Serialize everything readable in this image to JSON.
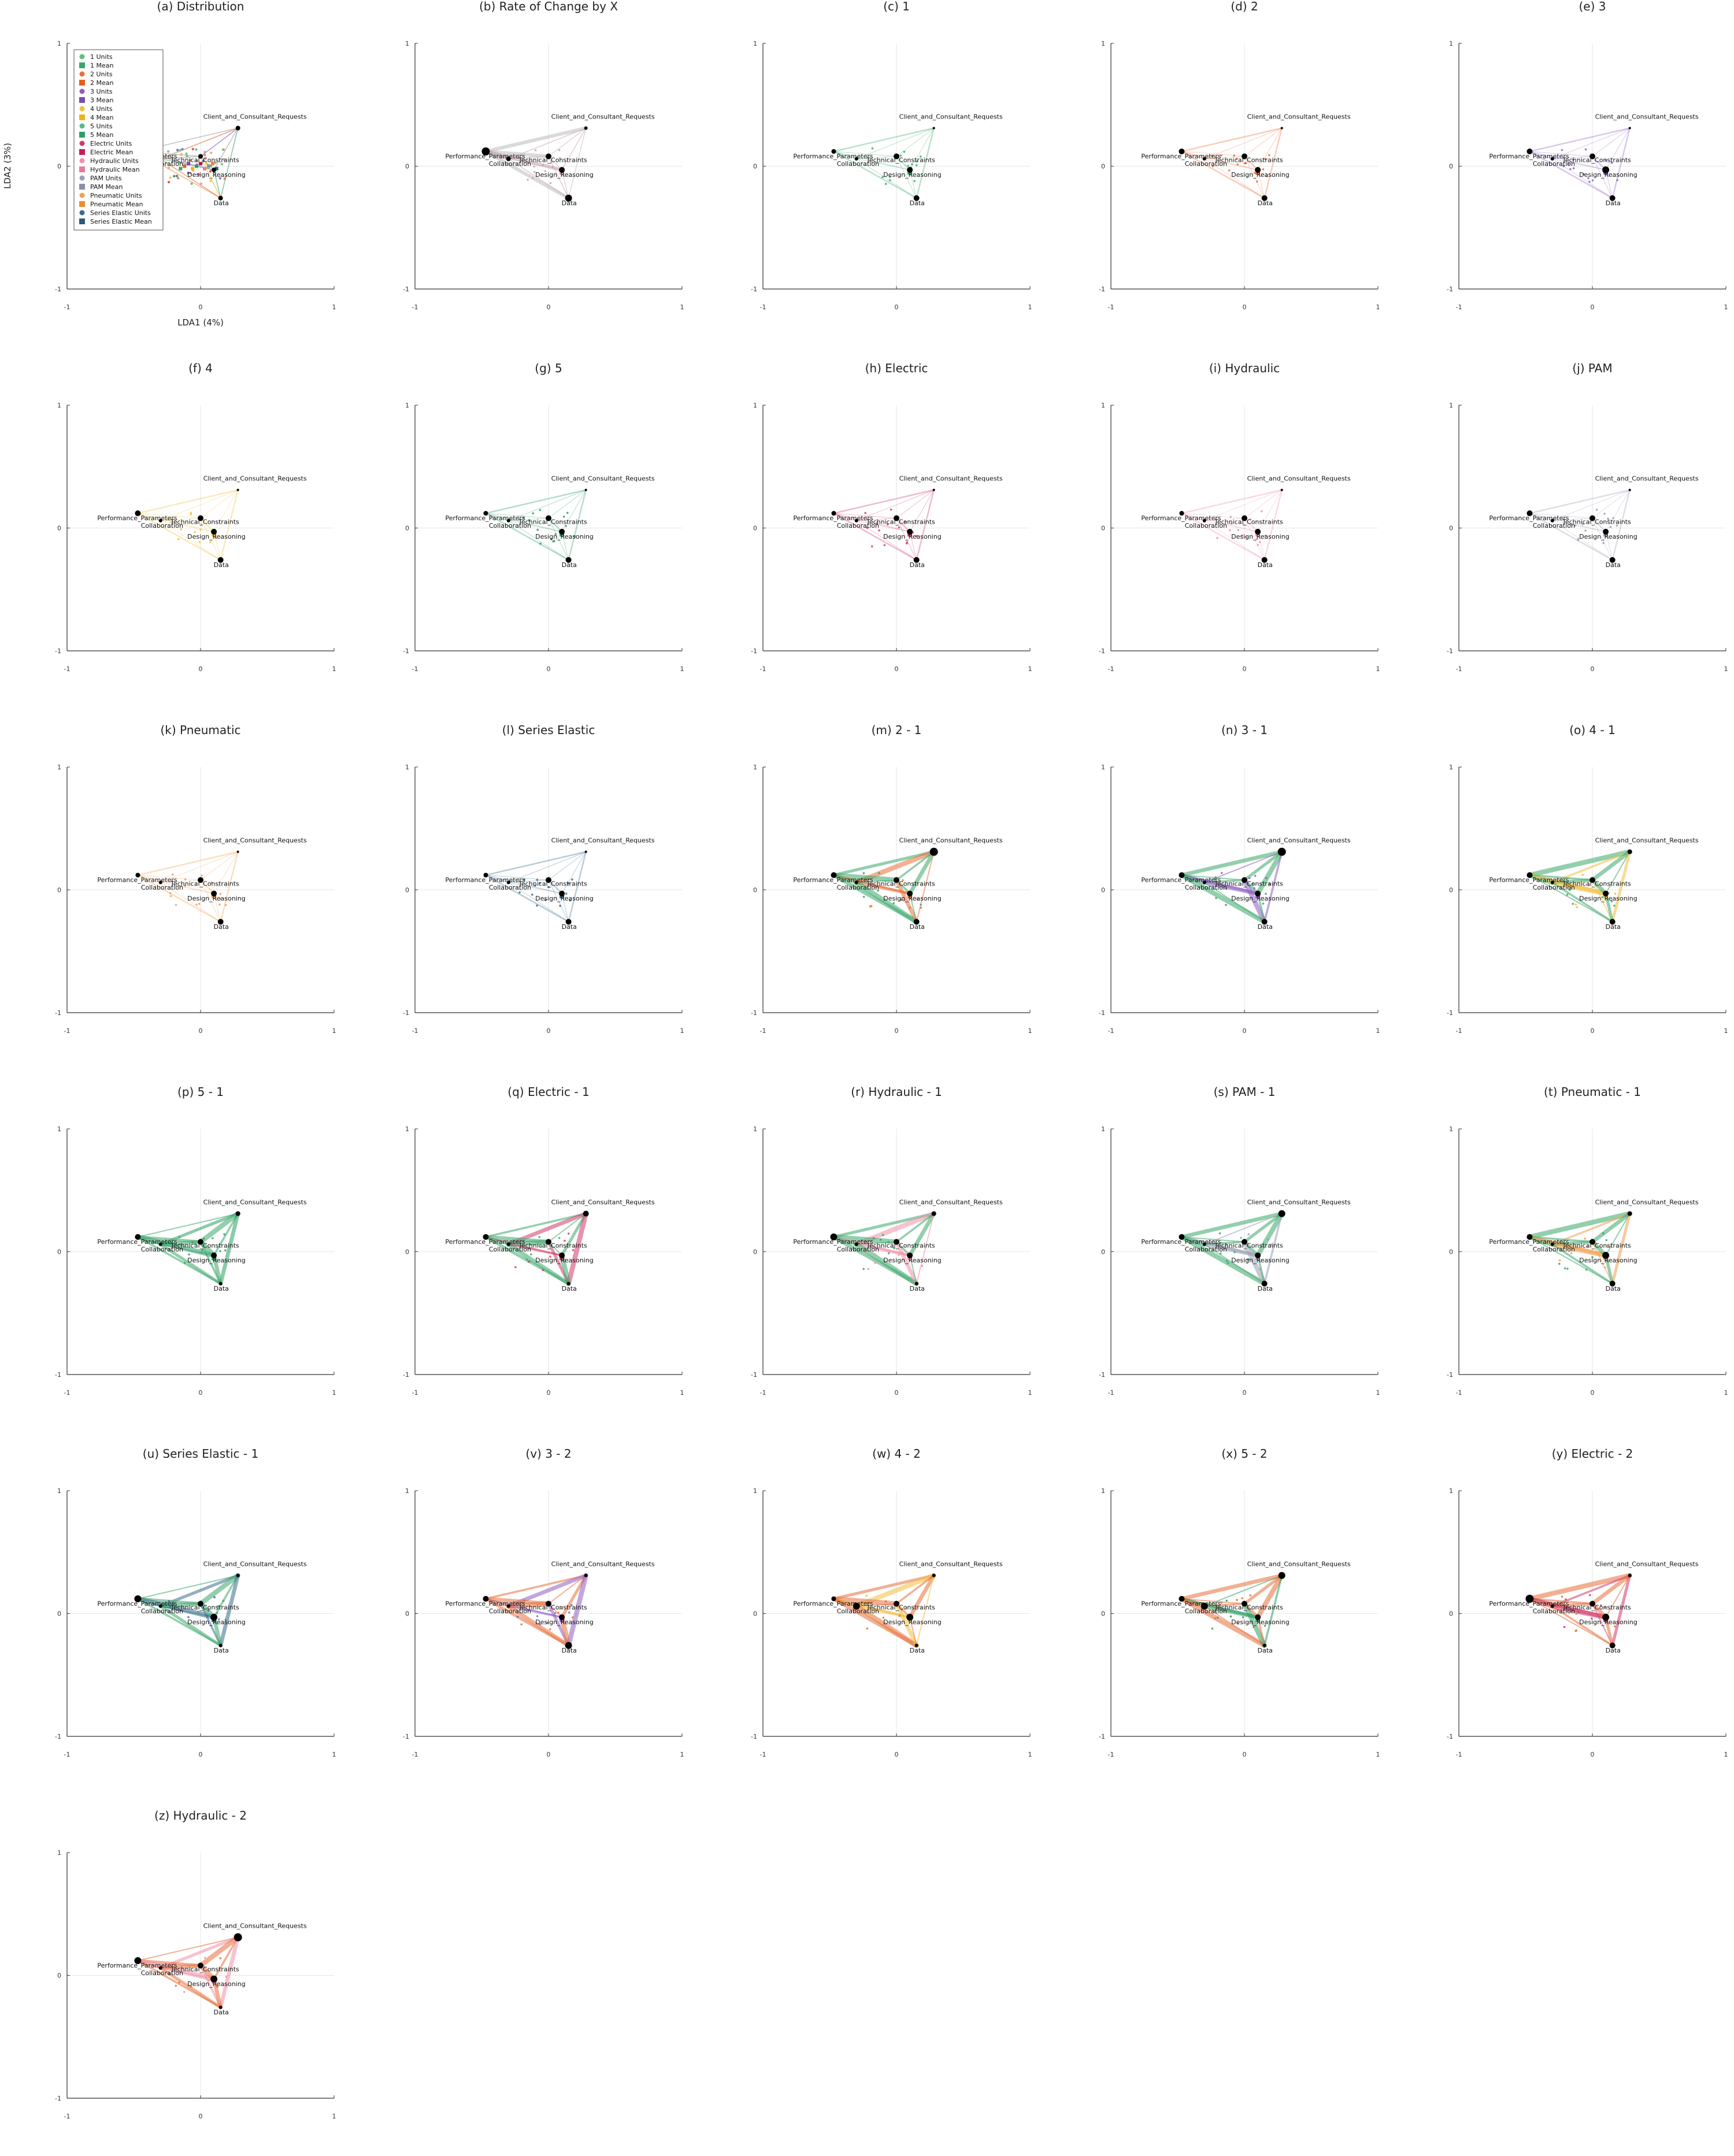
{
  "figure": {
    "xlabel": "LDA1 (4%)",
    "ylabel": "LDA2 (3%)",
    "xlim": [
      -1,
      1
    ],
    "ylim": [
      -1,
      1
    ],
    "ticks": [
      "-1",
      "0",
      "1"
    ]
  },
  "chart_data": {
    "type": "scatter",
    "xlim": [
      -1,
      1
    ],
    "ylim": [
      -1,
      1
    ],
    "grid": true,
    "legend_placement": "top-left",
    "nodes": [
      {
        "label": "Client_and_Consultant_Requests",
        "x": 0.28,
        "y": 0.31
      },
      {
        "label": "Performance_Parameters",
        "x": -0.47,
        "y": 0.12
      },
      {
        "label": "Collaboration",
        "x": -0.3,
        "y": 0.06
      },
      {
        "label": "Technical_Constraints",
        "x": 0.0,
        "y": 0.08
      },
      {
        "label": "Design_Reasoning",
        "x": 0.1,
        "y": -0.03
      },
      {
        "label": "Data",
        "x": 0.15,
        "y": -0.26
      }
    ],
    "legend": [
      {
        "name": "1 Units",
        "color": "#5fc07f",
        "marker": "circle"
      },
      {
        "name": "1 Mean",
        "color": "#3aa86a",
        "marker": "square"
      },
      {
        "name": "2 Units",
        "color": "#e8703a",
        "marker": "circle"
      },
      {
        "name": "2 Mean",
        "color": "#e06020",
        "marker": "square"
      },
      {
        "name": "3 Units",
        "color": "#8e5fc2",
        "marker": "circle"
      },
      {
        "name": "3 Mean",
        "color": "#7a4cb0",
        "marker": "square"
      },
      {
        "name": "4 Units",
        "color": "#f0c040",
        "marker": "circle"
      },
      {
        "name": "4 Mean",
        "color": "#e8b520",
        "marker": "square"
      },
      {
        "name": "5 Units",
        "color": "#58b88a",
        "marker": "circle"
      },
      {
        "name": "5 Mean",
        "color": "#2e9e66",
        "marker": "square"
      },
      {
        "name": "Electric Units",
        "color": "#d23a6a",
        "marker": "circle"
      },
      {
        "name": "Electric Mean",
        "color": "#c81e56",
        "marker": "square"
      },
      {
        "name": "Hydraulic Units",
        "color": "#f090a8",
        "marker": "circle"
      },
      {
        "name": "Hydraulic Mean",
        "color": "#ea7a96",
        "marker": "square"
      },
      {
        "name": "PAM Units",
        "color": "#9aa0b4",
        "marker": "circle"
      },
      {
        "name": "PAM Mean",
        "color": "#8a90a6",
        "marker": "square"
      },
      {
        "name": "Pneumatic Units",
        "color": "#f0a050",
        "marker": "circle"
      },
      {
        "name": "Pneumatic Mean",
        "color": "#ec8a30",
        "marker": "square"
      },
      {
        "name": "Series Elastic Units",
        "color": "#3a6c8c",
        "marker": "circle"
      },
      {
        "name": "Series Elastic Mean",
        "color": "#2a5a7c",
        "marker": "square"
      }
    ],
    "panels": [
      {
        "title": "(a) Distribution",
        "color": "#888888",
        "mode": "dist",
        "node_sizes": [
          4,
          4,
          4,
          4,
          4,
          4
        ]
      },
      {
        "title": "(b) Rate of Change by X",
        "color": "#c8a0b0",
        "mode": "rate",
        "node_sizes": [
          3,
          7,
          4,
          5,
          5,
          6
        ]
      },
      {
        "title": "(c) 1",
        "color": "#3aa86a",
        "mode": "single",
        "node_sizes": [
          2,
          4,
          3,
          5,
          5,
          5
        ]
      },
      {
        "title": "(d) 2",
        "color": "#e8703a",
        "mode": "single",
        "node_sizes": [
          2,
          5,
          3,
          5,
          5,
          5
        ]
      },
      {
        "title": "(e) 3",
        "color": "#8e5fc2",
        "mode": "single",
        "node_sizes": [
          2,
          5,
          3,
          5,
          6,
          5
        ]
      },
      {
        "title": "(f) 4",
        "color": "#f0c040",
        "mode": "single",
        "node_sizes": [
          2,
          5,
          3,
          5,
          5,
          5
        ]
      },
      {
        "title": "(g) 5",
        "color": "#2e9e66",
        "mode": "single",
        "node_sizes": [
          2,
          4,
          3,
          5,
          5,
          5
        ]
      },
      {
        "title": "(h) Electric",
        "color": "#d23a6a",
        "mode": "single",
        "node_sizes": [
          2,
          4,
          3,
          5,
          5,
          5
        ]
      },
      {
        "title": "(i) Hydraulic",
        "color": "#f090a8",
        "mode": "single",
        "node_sizes": [
          2,
          4,
          3,
          5,
          5,
          5
        ]
      },
      {
        "title": "(j) PAM",
        "color": "#9aa0b4",
        "mode": "single",
        "node_sizes": [
          2,
          5,
          3,
          5,
          5,
          5
        ]
      },
      {
        "title": "(k) Pneumatic",
        "color": "#f0a050",
        "mode": "single",
        "node_sizes": [
          2,
          4,
          3,
          5,
          5,
          5
        ]
      },
      {
        "title": "(l) Series Elastic",
        "color": "#3a6c8c",
        "mode": "single",
        "node_sizes": [
          2,
          4,
          3,
          5,
          5,
          5
        ]
      },
      {
        "title": "(m) 2 - 1",
        "color": "#3aa86a",
        "color2": "#e8703a",
        "mode": "diff",
        "node_sizes": [
          7,
          5,
          3,
          5,
          5,
          5
        ]
      },
      {
        "title": "(n) 3 - 1",
        "color": "#3aa86a",
        "color2": "#8e5fc2",
        "mode": "diff",
        "node_sizes": [
          7,
          5,
          3,
          5,
          5,
          5
        ]
      },
      {
        "title": "(o) 4 - 1",
        "color": "#3aa86a",
        "color2": "#f0c040",
        "mode": "diff",
        "node_sizes": [
          4,
          5,
          3,
          5,
          5,
          5
        ]
      },
      {
        "title": "(p) 5 - 1",
        "color": "#3aa86a",
        "color2": "#2e9e66",
        "mode": "diff",
        "node_sizes": [
          4,
          5,
          3,
          5,
          5,
          3
        ]
      },
      {
        "title": "(q) Electric - 1",
        "color": "#3aa86a",
        "color2": "#d23a6a",
        "mode": "diff",
        "node_sizes": [
          5,
          5,
          3,
          5,
          5,
          3
        ]
      },
      {
        "title": "(r) Hydraulic - 1",
        "color": "#3aa86a",
        "color2": "#f090a8",
        "mode": "diff",
        "node_sizes": [
          4,
          6,
          3,
          5,
          5,
          3
        ]
      },
      {
        "title": "(s) PAM - 1",
        "color": "#3aa86a",
        "color2": "#9aa0b4",
        "mode": "diff",
        "node_sizes": [
          6,
          5,
          3,
          5,
          5,
          5
        ]
      },
      {
        "title": "(t) Pneumatic - 1",
        "color": "#3aa86a",
        "color2": "#f0a050",
        "mode": "diff",
        "node_sizes": [
          4,
          5,
          3,
          5,
          6,
          5
        ]
      },
      {
        "title": "(u) Series Elastic - 1",
        "color": "#3aa86a",
        "color2": "#3a6c8c",
        "mode": "diff",
        "node_sizes": [
          3,
          6,
          3,
          5,
          6,
          3
        ]
      },
      {
        "title": "(v) 3 - 2",
        "color": "#e8703a",
        "color2": "#8e5fc2",
        "mode": "diff",
        "node_sizes": [
          3,
          5,
          3,
          5,
          5,
          6
        ]
      },
      {
        "title": "(w) 4 - 2",
        "color": "#e8703a",
        "color2": "#f0c040",
        "mode": "diff",
        "node_sizes": [
          3,
          4,
          6,
          5,
          6,
          3
        ]
      },
      {
        "title": "(x) 5 - 2",
        "color": "#e8703a",
        "color2": "#2e9e66",
        "mode": "diff",
        "node_sizes": [
          6,
          5,
          6,
          5,
          5,
          3
        ]
      },
      {
        "title": "(y) Electric - 2",
        "color": "#e8703a",
        "color2": "#d23a6a",
        "mode": "diff",
        "node_sizes": [
          3,
          7,
          3,
          5,
          6,
          5
        ]
      },
      {
        "title": "(z) Hydraulic - 2",
        "color": "#e8703a",
        "color2": "#f090a8",
        "mode": "diff",
        "node_sizes": [
          7,
          6,
          3,
          5,
          6,
          3
        ]
      }
    ]
  }
}
